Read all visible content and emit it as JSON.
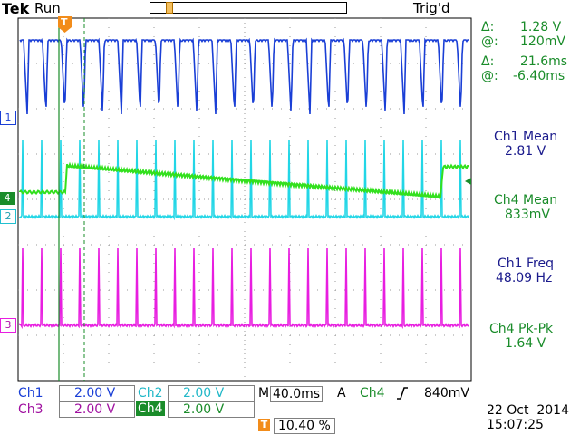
{
  "header": {
    "brand": "Tek",
    "run_state": "Run",
    "trigger_status": "Trig'd",
    "trigger_marker": "T"
  },
  "cursors": {
    "delta_v_label": "Δ:",
    "delta_v": "1.28 V",
    "at_v_label": "@:",
    "at_v": "120mV",
    "delta_t_label": "Δ:",
    "delta_t": "21.6ms",
    "at_t_label": "@:",
    "at_t": "-6.40ms"
  },
  "measurements": [
    {
      "label": "Ch1 Mean",
      "value": "2.81 V"
    },
    {
      "label": "Ch4 Mean",
      "value": "833mV"
    },
    {
      "label": "Ch1 Freq",
      "value": "48.09 Hz"
    },
    {
      "label": "Ch4 Pk-Pk",
      "value": "1.64 V"
    }
  ],
  "channel_markers": {
    "ch1": "1",
    "ch2": "2",
    "ch3": "3",
    "ch4": "4"
  },
  "channels": {
    "ch1": {
      "label": "Ch1",
      "scale": "2.00 V",
      "color": "#1a3fd6"
    },
    "ch2": {
      "label": "Ch2",
      "scale": "2.00 V",
      "color": "#22d6e6"
    },
    "ch3": {
      "label": "Ch3",
      "scale": "2.00 V",
      "color": "#e81ee0"
    },
    "ch4": {
      "label": "Ch4",
      "scale": "2.00 V",
      "color": "#33e01e"
    }
  },
  "timebase": {
    "prefix": "M",
    "value": "40.0ms"
  },
  "trigger": {
    "mode": "A",
    "source": "Ch4",
    "slope_icon": "rising-edge-icon",
    "level": "840mV"
  },
  "trigger_position": {
    "icon": "T",
    "value": "10.40 %"
  },
  "datetime": {
    "date": "22 Oct  2014",
    "time": "15:07:25"
  }
}
